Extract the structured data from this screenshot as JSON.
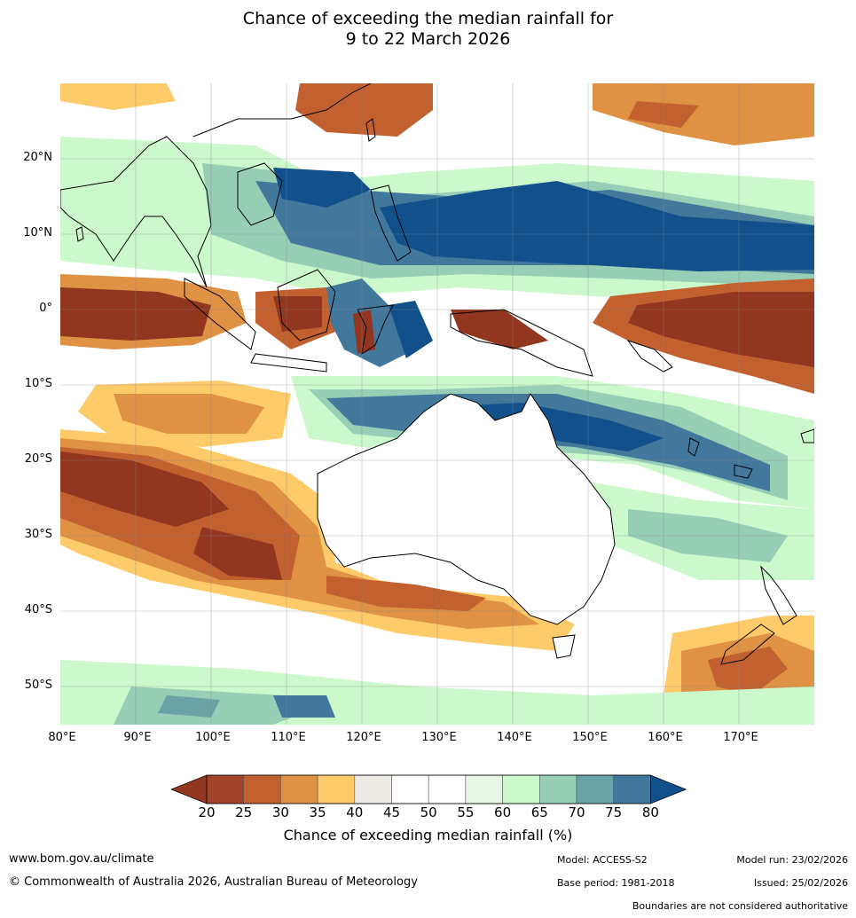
{
  "title_line1": "Chance of exceeding the median rainfall for",
  "title_line2": "9 to 22 March 2026",
  "lat_labels": [
    "20°N",
    "10°N",
    "0°",
    "10°S",
    "20°S",
    "30°S",
    "40°S",
    "50°S"
  ],
  "lon_labels": [
    "80°E",
    "90°E",
    "100°E",
    "110°E",
    "120°E",
    "130°E",
    "140°E",
    "150°E",
    "160°E",
    "170°E"
  ],
  "colorbar": {
    "ticks": [
      "20",
      "25",
      "30",
      "35",
      "40",
      "45",
      "50",
      "55",
      "60",
      "65",
      "70",
      "75",
      "80"
    ],
    "colors": [
      "#a3432a",
      "#c2602f",
      "#df9144",
      "#fecb6a",
      "#eeebe6",
      "#ffffff",
      "#ffffff",
      "#e9f5e6",
      "#ccf9cc",
      "#98cdb6",
      "#6aa3a6",
      "#41789c"
    ],
    "under_color": "#93361f",
    "over_color": "#11508a",
    "title": "Chance of exceeding median rainfall (%)"
  },
  "footer": {
    "website": "www.bom.gov.au/climate",
    "copyright": "© Commonwealth of Australia 2026, Australian Bureau of Meteorology",
    "model": "Model: ACCESS-S2",
    "model_run": "Model run: 23/02/2026",
    "base_period": "Base period: 1981-2018",
    "issued": "Issued: 25/02/2026",
    "disclaimer": "Boundaries are not considered authoritative"
  }
}
